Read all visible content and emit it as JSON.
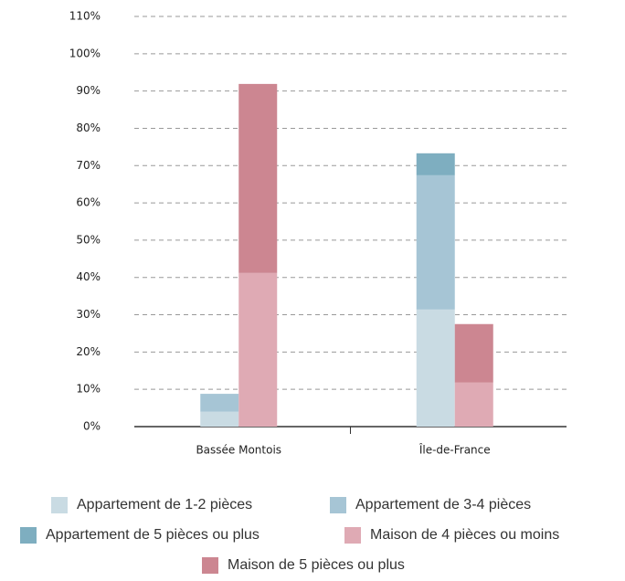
{
  "chart_data": {
    "type": "stacked-bar",
    "categories": [
      "Bassée Montois",
      "Île-de-France"
    ],
    "series": [
      {
        "name": "Appartement de 1-2 pièces",
        "color": "#c9dbe3",
        "stack": 0,
        "values": [
          4,
          31.4
        ]
      },
      {
        "name": "Appartement de 3-4 pièces",
        "color": "#a6c5d5",
        "stack": 0,
        "values": [
          4.8,
          36
        ]
      },
      {
        "name": "Appartement de 5 pièces ou plus",
        "color": "#7eaec0",
        "stack": 0,
        "values": [
          0,
          5.9
        ]
      },
      {
        "name": "Maison de 4 pièces ou moins",
        "color": "#dfaab4",
        "stack": 1,
        "values": [
          41.2,
          11.8
        ]
      },
      {
        "name": "Maison de 5 pièces ou plus",
        "color": "#cc8691",
        "stack": 1,
        "values": [
          50.7,
          15.7
        ]
      }
    ],
    "ylim": [
      0,
      110
    ],
    "yticks": [
      {
        "value": 0,
        "label": "0%"
      },
      {
        "value": 10,
        "label": "10%"
      },
      {
        "value": 20,
        "label": "20%"
      },
      {
        "value": 30,
        "label": "30%"
      },
      {
        "value": 40,
        "label": "40%"
      },
      {
        "value": 50,
        "label": "50%"
      },
      {
        "value": 60,
        "label": "60%"
      },
      {
        "value": 70,
        "label": "70%"
      },
      {
        "value": 80,
        "label": "80%"
      },
      {
        "value": 90,
        "label": "90%"
      },
      {
        "value": 100,
        "label": "100%"
      },
      {
        "value": 110,
        "label": "110%"
      }
    ],
    "grid": true
  }
}
